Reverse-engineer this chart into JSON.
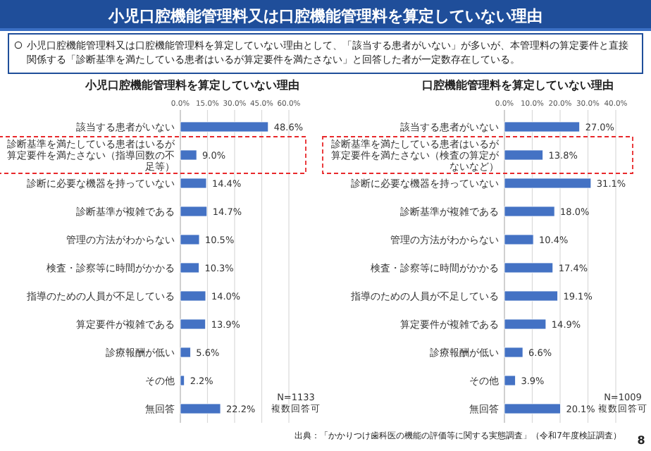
{
  "chart_data": [
    {
      "type": "bar",
      "orientation": "horizontal",
      "title": "小児口腔機能管理料を算定していない理由",
      "categories": [
        "該当する患者がいない",
        "診断基準を満たしている患者はいるが算定要件を満たさない（指導回数の不足等）",
        "診断に必要な機器を持っていない",
        "診断基準が複雑である",
        "管理の方法がわからない",
        "検査・診察等に時間がかかる",
        "指導のための人員が不足している",
        "算定要件が複雑である",
        "診療報酬が低い",
        "その他",
        "無回答"
      ],
      "values": [
        48.6,
        9.0,
        14.4,
        14.7,
        10.5,
        10.3,
        14.0,
        13.9,
        5.6,
        2.2,
        22.2
      ],
      "value_labels": [
        "48.6%",
        "9.0%",
        "14.4%",
        "14.7%",
        "10.5%",
        "10.3%",
        "14.0%",
        "13.9%",
        "5.6%",
        "2.2%",
        "22.2%"
      ],
      "color": "#4472c4",
      "xlim": [
        0,
        60
      ],
      "xticks": [
        {
          "value": 0,
          "label": "0.0%"
        },
        {
          "value": 15,
          "label": "15.0%"
        },
        {
          "value": 30,
          "label": "30.0%"
        },
        {
          "value": 45,
          "label": "45.0%"
        },
        {
          "value": 60,
          "label": "60.0%"
        }
      ],
      "grid": "x",
      "annotations": [
        "小児口腔機能管理料又は口腔機能管理料を算定していない理由",
        "小児口腔機能管理料又は口腔機能管理料を算定していない理由として、「該当する患者がいない」が多いが、本管理料の算定要件と直接関係する「診断基準を満たしている患者はいるが算定要件を満たさない」と回答した者が一定数存在している。",
        "N=1133\n複数回答可"
      ]
    },
    {
      "type": "bar",
      "orientation": "horizontal",
      "title": "口腔機能管理料を算定していない理由",
      "categories": [
        "該当する患者がいない",
        "診断基準を満たしている患者はいるが算定要件を満たさない（検査の算定がないなど）",
        "診断に必要な機器を持っていない",
        "診断基準が複雑である",
        "管理の方法がわからない",
        "検査・診察等に時間がかかる",
        "指導のための人員が不足している",
        "算定要件が複雑である",
        "診療報酬が低い",
        "その他",
        "無回答"
      ],
      "values": [
        27.0,
        13.8,
        31.1,
        18.0,
        10.4,
        17.4,
        19.1,
        14.9,
        6.6,
        3.9,
        20.1
      ],
      "value_labels": [
        "27.0%",
        "13.8%",
        "31.1%",
        "18.0%",
        "10.4%",
        "17.4%",
        "19.1%",
        "14.9%",
        "6.6%",
        "3.9%",
        "20.1%"
      ],
      "color": "#4472c4",
      "xlim": [
        0,
        40
      ],
      "xticks": [
        {
          "value": 0,
          "label": "0.0%"
        },
        {
          "value": 10,
          "label": "10.0%"
        },
        {
          "value": 20,
          "label": "20.0%"
        },
        {
          "value": 30,
          "label": "30.0%"
        },
        {
          "value": 40,
          "label": "40.0%"
        }
      ],
      "grid": "x",
      "annotations": [
        "N=1009\n複数回答可",
        "出典：「かかりつけ歯科医の機能の評価等に関する実態調査」（令和7年度検証調査）",
        "8"
      ]
    }
  ]
}
